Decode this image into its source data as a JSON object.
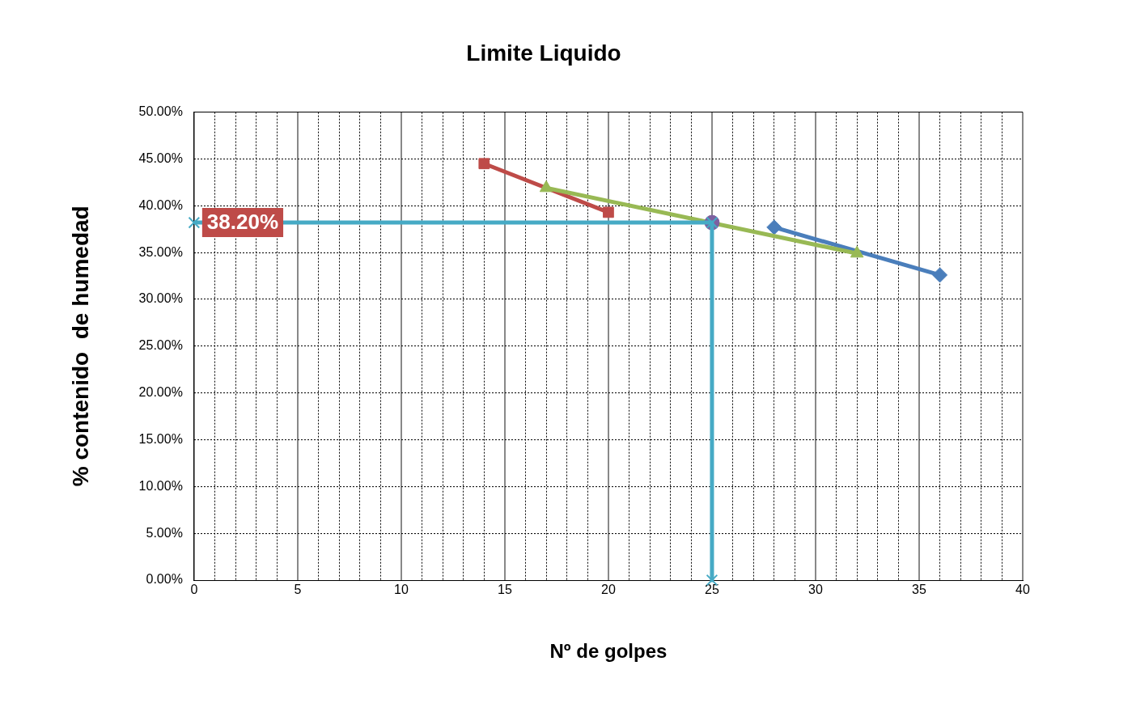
{
  "chart_data": {
    "type": "line",
    "title": "Limite Liquido",
    "xlabel": "Nº de golpes",
    "ylabel": "% contenido  de humedad",
    "xlim": [
      0,
      40
    ],
    "xticks": [
      0,
      {
        "value": 1,
        "label": null
      },
      {
        "value": 2,
        "label": null
      },
      {
        "value": 3,
        "label": null
      },
      {
        "value": 4,
        "label": null
      },
      5,
      {
        "value": 6,
        "label": null
      },
      {
        "value": 7,
        "label": null
      },
      {
        "value": 8,
        "label": null
      },
      {
        "value": 9,
        "label": null
      },
      10,
      {
        "value": 11,
        "label": null
      },
      {
        "value": 12,
        "label": null
      },
      {
        "value": 13,
        "label": null
      },
      {
        "value": 14,
        "label": null
      },
      15,
      {
        "value": 16,
        "label": null
      },
      {
        "value": 17,
        "label": null
      },
      {
        "value": 18,
        "label": null
      },
      {
        "value": 19,
        "label": null
      },
      20,
      {
        "value": 21,
        "label": null
      },
      {
        "value": 22,
        "label": null
      },
      {
        "value": 23,
        "label": null
      },
      {
        "value": 24,
        "label": null
      },
      25,
      {
        "value": 26,
        "label": null
      },
      {
        "value": 27,
        "label": null
      },
      {
        "value": 28,
        "label": null
      },
      {
        "value": 29,
        "label": null
      },
      30,
      {
        "value": 31,
        "label": null
      },
      {
        "value": 32,
        "label": null
      },
      {
        "value": 33,
        "label": null
      },
      {
        "value": 34,
        "label": null
      },
      35,
      {
        "value": 36,
        "label": null
      },
      {
        "value": 37,
        "label": null
      },
      {
        "value": 38,
        "label": null
      },
      {
        "value": 39,
        "label": null
      },
      40
    ],
    "ylim": [
      0,
      50
    ],
    "yticks": [
      {
        "value": 0,
        "label": "0.00%"
      },
      {
        "value": 5,
        "label": "5.00%"
      },
      {
        "value": 10,
        "label": "10.00%"
      },
      {
        "value": 15,
        "label": "15.00%"
      },
      {
        "value": 20,
        "label": "20.00%"
      },
      {
        "value": 25,
        "label": "25.00%"
      },
      {
        "value": 30,
        "label": "30.00%"
      },
      {
        "value": 35,
        "label": "35.00%"
      },
      {
        "value": 40,
        "label": "40.00%"
      },
      {
        "value": 45,
        "label": "45.00%"
      },
      {
        "value": 50,
        "label": "50.00%"
      }
    ],
    "grid": true,
    "legend": false,
    "series": [
      {
        "type": "line",
        "color": "#4a7ebb",
        "marker": "diamond",
        "x": [
          28,
          36
        ],
        "values": [
          37.7,
          32.6
        ]
      },
      {
        "type": "line",
        "color": "#be4b48",
        "marker": "square",
        "x": [
          14,
          20
        ],
        "values": [
          44.5,
          39.3
        ]
      },
      {
        "type": "line",
        "color": "#98b954",
        "marker": "triangle",
        "x": [
          17,
          32
        ],
        "values": [
          41.9,
          34.9
        ]
      },
      {
        "type": "scatter",
        "color": "#7d60a0",
        "marker": "circle",
        "x": [
          25
        ],
        "values": [
          38.2
        ]
      },
      {
        "type": "line",
        "color": "#46aac5",
        "marker": "cross",
        "x": [
          0,
          25,
          25
        ],
        "values": [
          38.2,
          38.2,
          0
        ]
      }
    ],
    "annotations": [
      {
        "text": "38.20%",
        "x": 0,
        "y": 38.2
      }
    ]
  }
}
